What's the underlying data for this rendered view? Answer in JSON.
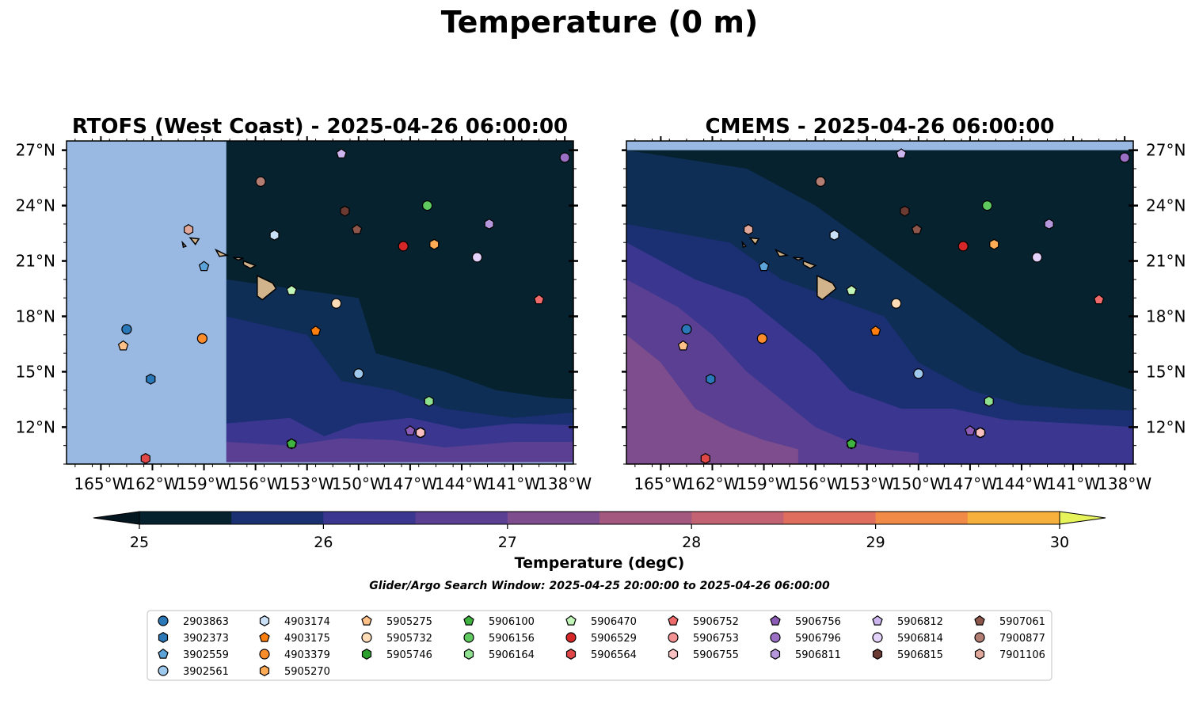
{
  "figure": {
    "title": "Temperature (0 m)",
    "search_window": "Glider/Argo Search Window: 2025-04-25 20:00:00 to 2025-04-26 06:00:00"
  },
  "colorbar": {
    "label": "Temperature (degC)",
    "ticks": [
      "25",
      "26",
      "27",
      "28",
      "29",
      "30"
    ],
    "range": [
      25,
      30
    ],
    "step": 0.5,
    "under_color": "#04161f",
    "over_color": "#e6f35a",
    "colors": [
      "#06222f",
      "#1b2f73",
      "#3b3791",
      "#5a3f92",
      "#7d4d8e",
      "#a2587f",
      "#c36272",
      "#df6e5e",
      "#f08a46",
      "#f8b03c"
    ],
    "extend": "both"
  },
  "legend": {
    "columns": [
      [
        {
          "id": "2903863",
          "marker": "circle",
          "color": "#2a78b7"
        },
        {
          "id": "3902373",
          "marker": "hexagon",
          "color": "#2a78b7"
        },
        {
          "id": "3902559",
          "marker": "pentagon",
          "color": "#5ca3d9"
        },
        {
          "id": "3902561",
          "marker": "circle",
          "color": "#9ec9ec"
        }
      ],
      [
        {
          "id": "4903174",
          "marker": "hexagon",
          "color": "#c9e0f7"
        },
        {
          "id": "4903175",
          "marker": "pentagon",
          "color": "#ff7f0e"
        },
        {
          "id": "4903379",
          "marker": "circle",
          "color": "#ff8c2a"
        },
        {
          "id": "5905270",
          "marker": "hexagon",
          "color": "#ffaa55"
        }
      ],
      [
        {
          "id": "5905275",
          "marker": "pentagon",
          "color": "#ffc188"
        },
        {
          "id": "5905732",
          "marker": "circle",
          "color": "#ffdcb8"
        },
        {
          "id": "5905746",
          "marker": "hexagon",
          "color": "#2ca02c"
        }
      ],
      [
        {
          "id": "5906100",
          "marker": "pentagon",
          "color": "#3fb23f"
        },
        {
          "id": "5906156",
          "marker": "circle",
          "color": "#5fc95f"
        },
        {
          "id": "5906164",
          "marker": "hexagon",
          "color": "#8fe08f"
        }
      ],
      [
        {
          "id": "5906470",
          "marker": "pentagon",
          "color": "#c2f5b8"
        },
        {
          "id": "5906529",
          "marker": "circle",
          "color": "#d62728"
        },
        {
          "id": "5906564",
          "marker": "hexagon",
          "color": "#e04848"
        }
      ],
      [
        {
          "id": "5906752",
          "marker": "pentagon",
          "color": "#ef6b6b"
        },
        {
          "id": "5906753",
          "marker": "circle",
          "color": "#f29292"
        },
        {
          "id": "5906755",
          "marker": "hexagon",
          "color": "#f8c0c0"
        }
      ],
      [
        {
          "id": "5906756",
          "marker": "pentagon",
          "color": "#8c5bb5"
        },
        {
          "id": "5906796",
          "marker": "circle",
          "color": "#9a6fc4"
        },
        {
          "id": "5906811",
          "marker": "hexagon",
          "color": "#b597dc"
        }
      ],
      [
        {
          "id": "5906812",
          "marker": "pentagon",
          "color": "#cdb5ef"
        },
        {
          "id": "5906814",
          "marker": "circle",
          "color": "#e3d3fb"
        },
        {
          "id": "5906815",
          "marker": "hexagon",
          "color": "#6a3a33"
        }
      ],
      [
        {
          "id": "5907061",
          "marker": "pentagon",
          "color": "#8c564b"
        },
        {
          "id": "7900877",
          "marker": "circle",
          "color": "#b27d72"
        },
        {
          "id": "7901106",
          "marker": "hexagon",
          "color": "#e0a89a"
        }
      ]
    ]
  },
  "chart_data": [
    {
      "type": "heatmap",
      "title": "RTOFS (West Coast) - 2025-04-26 06:00:00",
      "xlim": [
        -167,
        -137.5
      ],
      "ylim": [
        10,
        27.5
      ],
      "data_lon_min": -157.7,
      "x_ticks": [
        -165,
        -162,
        -159,
        -156,
        -153,
        -150,
        -147,
        -144,
        -141,
        -138
      ],
      "x_tick_labels": [
        "165°W",
        "162°W",
        "159°W",
        "156°W",
        "153°W",
        "150°W",
        "147°W",
        "144°W",
        "141°W",
        "138°W"
      ],
      "y_ticks": [
        12,
        15,
        18,
        21,
        24,
        27
      ],
      "y_tick_labels": [
        "12°N",
        "15°N",
        "18°N",
        "21°N",
        "24°N",
        "27°N"
      ],
      "y_axis_side": "left",
      "field_colors": {
        "no_data": "#99b8e2",
        "base": "#06222f",
        "band1": "#0f2e55",
        "band2": "#1b2f73",
        "band3": "#3b3791",
        "band4": "#5a3f92",
        "band5": "#7d4d8e"
      }
    },
    {
      "type": "heatmap",
      "title": "CMEMS - 2025-04-26 06:00:00",
      "xlim": [
        -167,
        -137.5
      ],
      "ylim": [
        10,
        27.5
      ],
      "data_lat_max": 27,
      "x_ticks": [
        -165,
        -162,
        -159,
        -156,
        -153,
        -150,
        -147,
        -144,
        -141,
        -138
      ],
      "x_tick_labels": [
        "165°W",
        "162°W",
        "159°W",
        "156°W",
        "153°W",
        "150°W",
        "147°W",
        "144°W",
        "141°W",
        "138°W"
      ],
      "y_ticks": [
        12,
        15,
        18,
        21,
        24,
        27
      ],
      "y_tick_labels": [
        "12°N",
        "15°N",
        "18°N",
        "21°N",
        "24°N",
        "27°N"
      ],
      "y_axis_side": "right",
      "field_colors": {
        "no_data": "#99b8e2",
        "base": "#06222f",
        "band1": "#0f2e55",
        "band2": "#1b2f73",
        "band3": "#3b3791",
        "band4": "#5a3f92",
        "band5": "#7d4d8e"
      }
    }
  ],
  "floats": [
    {
      "id": "2903863",
      "lon": -163.5,
      "lat": 17.3
    },
    {
      "id": "3902373",
      "lon": -162.1,
      "lat": 14.6
    },
    {
      "id": "3902559",
      "lon": -159.0,
      "lat": 20.7
    },
    {
      "id": "3902561",
      "lon": -150.0,
      "lat": 14.9
    },
    {
      "id": "4903174",
      "lon": -154.9,
      "lat": 22.4
    },
    {
      "id": "4903175",
      "lon": -152.5,
      "lat": 17.2
    },
    {
      "id": "4903379",
      "lon": -159.1,
      "lat": 16.8
    },
    {
      "id": "5905270",
      "lon": -145.6,
      "lat": 21.9
    },
    {
      "id": "5905275",
      "lon": -163.7,
      "lat": 16.4
    },
    {
      "id": "5905732",
      "lon": -151.3,
      "lat": 18.7
    },
    {
      "id": "5905746",
      "lon": -153.9,
      "lat": 11.1
    },
    {
      "id": "5906100",
      "lon": -153.9,
      "lat": 11.1
    },
    {
      "id": "5906156",
      "lon": -146.0,
      "lat": 24.0
    },
    {
      "id": "5906164",
      "lon": -145.9,
      "lat": 13.4
    },
    {
      "id": "5906470",
      "lon": -153.9,
      "lat": 19.4
    },
    {
      "id": "5906529",
      "lon": -147.4,
      "lat": 21.8
    },
    {
      "id": "5906564",
      "lon": -162.4,
      "lat": 10.3
    },
    {
      "id": "5906752",
      "lon": -139.5,
      "lat": 18.9
    },
    {
      "id": "5906753",
      "lon": -146.4,
      "lat": 11.7
    },
    {
      "id": "5906755",
      "lon": -146.4,
      "lat": 11.7
    },
    {
      "id": "5906756",
      "lon": -147.0,
      "lat": 11.8
    },
    {
      "id": "5906796",
      "lon": -138.0,
      "lat": 26.6
    },
    {
      "id": "5906811",
      "lon": -142.4,
      "lat": 23.0
    },
    {
      "id": "5906812",
      "lon": -151.0,
      "lat": 26.8
    },
    {
      "id": "5906814",
      "lon": -143.1,
      "lat": 21.2
    },
    {
      "id": "5906815",
      "lon": -150.8,
      "lat": 23.7
    },
    {
      "id": "5907061",
      "lon": -150.1,
      "lat": 22.7
    },
    {
      "id": "7900877",
      "lon": -155.7,
      "lat": 25.3
    },
    {
      "id": "7901106",
      "lon": -159.9,
      "lat": 22.7
    }
  ]
}
